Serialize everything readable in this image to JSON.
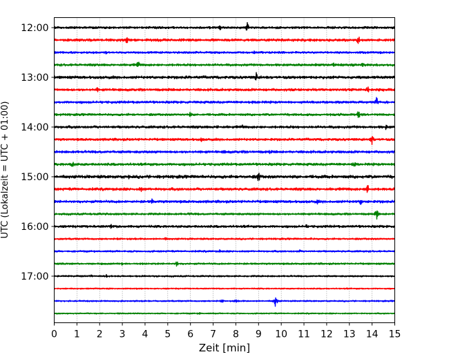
{
  "chart_data": {
    "type": "line",
    "xlabel": "Zeit  [min]",
    "ylabel": "UTC (Lokalzeit = UTC + 01:00)",
    "xlim": [
      0,
      15
    ],
    "x_ticks": [
      "0",
      "1",
      "2",
      "3",
      "4",
      "5",
      "6",
      "7",
      "8",
      "9",
      "10",
      "11",
      "12",
      "13",
      "14",
      "15"
    ],
    "y_ticks": [
      "12:00",
      "13:00",
      "14:00",
      "15:00",
      "16:00",
      "17:00"
    ],
    "grid": "vertical dotted",
    "colors": [
      "#000000",
      "#ff0000",
      "#0000ff",
      "#008000"
    ],
    "traces": [
      {
        "time": "12:00",
        "color": "#000000",
        "amp": 1.3,
        "events": [
          {
            "x": 7.3,
            "a": 5
          },
          {
            "x": 8.5,
            "a": 9
          }
        ]
      },
      {
        "time": "12:15",
        "color": "#ff0000",
        "amp": 1.5,
        "events": [
          {
            "x": 3.2,
            "a": 6
          },
          {
            "x": 13.4,
            "a": 8
          }
        ]
      },
      {
        "time": "12:30",
        "color": "#0000ff",
        "amp": 1.2,
        "events": [
          {
            "x": 2.3,
            "a": 3
          },
          {
            "x": 8.8,
            "a": 3
          }
        ]
      },
      {
        "time": "12:45",
        "color": "#008000",
        "amp": 1.4,
        "events": [
          {
            "x": 3.7,
            "a": 7
          },
          {
            "x": 12.3,
            "a": 4
          },
          {
            "x": 13.6,
            "a": 4
          }
        ]
      },
      {
        "time": "13:00",
        "color": "#000000",
        "amp": 1.6,
        "events": [
          {
            "x": 5.8,
            "a": 3
          },
          {
            "x": 8.9,
            "a": 8
          }
        ]
      },
      {
        "time": "13:15",
        "color": "#ff0000",
        "amp": 1.5,
        "events": [
          {
            "x": 1.9,
            "a": 4
          },
          {
            "x": 13.8,
            "a": 7
          }
        ]
      },
      {
        "time": "13:30",
        "color": "#0000ff",
        "amp": 1.4,
        "events": [
          {
            "x": 9.0,
            "a": 4
          },
          {
            "x": 14.2,
            "a": 8
          }
        ]
      },
      {
        "time": "13:45",
        "color": "#008000",
        "amp": 1.3,
        "events": [
          {
            "x": 6.0,
            "a": 5
          },
          {
            "x": 13.4,
            "a": 8
          }
        ]
      },
      {
        "time": "14:00",
        "color": "#000000",
        "amp": 1.5,
        "events": [
          {
            "x": 7.2,
            "a": 4
          },
          {
            "x": 8.3,
            "a": 4
          },
          {
            "x": 14.6,
            "a": 5
          }
        ]
      },
      {
        "time": "14:15",
        "color": "#ff0000",
        "amp": 1.4,
        "events": [
          {
            "x": 6.5,
            "a": 5
          },
          {
            "x": 14.0,
            "a": 9
          }
        ]
      },
      {
        "time": "14:30",
        "color": "#0000ff",
        "amp": 1.5,
        "events": [
          {
            "x": 7.5,
            "a": 4
          },
          {
            "x": 9.5,
            "a": 4
          }
        ]
      },
      {
        "time": "14:45",
        "color": "#008000",
        "amp": 1.5,
        "events": [
          {
            "x": 0.8,
            "a": 7
          },
          {
            "x": 13.2,
            "a": 7
          }
        ]
      },
      {
        "time": "15:00",
        "color": "#000000",
        "amp": 1.8,
        "events": [
          {
            "x": 3.3,
            "a": 4
          },
          {
            "x": 9.0,
            "a": 9
          }
        ]
      },
      {
        "time": "15:15",
        "color": "#ff0000",
        "amp": 1.6,
        "events": [
          {
            "x": 3.8,
            "a": 6
          },
          {
            "x": 13.8,
            "a": 9
          }
        ]
      },
      {
        "time": "15:30",
        "color": "#0000ff",
        "amp": 1.5,
        "events": [
          {
            "x": 4.3,
            "a": 5
          },
          {
            "x": 11.6,
            "a": 4
          },
          {
            "x": 13.5,
            "a": 6
          }
        ]
      },
      {
        "time": "15:45",
        "color": "#008000",
        "amp": 1.2,
        "events": [
          {
            "x": 6.0,
            "a": 4
          },
          {
            "x": 14.2,
            "a": 9
          }
        ]
      },
      {
        "time": "16:00",
        "color": "#000000",
        "amp": 1.4,
        "events": [
          {
            "x": 2.5,
            "a": 4
          },
          {
            "x": 11.1,
            "a": 4
          }
        ]
      },
      {
        "time": "16:15",
        "color": "#ff0000",
        "amp": 1.0,
        "events": [
          {
            "x": 4.9,
            "a": 3
          },
          {
            "x": 11.3,
            "a": 3
          }
        ]
      },
      {
        "time": "16:30",
        "color": "#0000ff",
        "amp": 1.0,
        "events": [
          {
            "x": 7.3,
            "a": 3
          },
          {
            "x": 10.8,
            "a": 3
          }
        ]
      },
      {
        "time": "16:45",
        "color": "#008000",
        "amp": 1.0,
        "events": [
          {
            "x": 3.0,
            "a": 3
          },
          {
            "x": 3.9,
            "a": 3
          },
          {
            "x": 5.4,
            "a": 5
          }
        ]
      },
      {
        "time": "17:00",
        "color": "#000000",
        "amp": 0.9,
        "events": [
          {
            "x": 1.6,
            "a": 4
          },
          {
            "x": 2.3,
            "a": 3
          }
        ]
      },
      {
        "time": "17:15",
        "color": "#ff0000",
        "amp": 0.7,
        "events": []
      },
      {
        "time": "17:30",
        "color": "#0000ff",
        "amp": 0.8,
        "events": [
          {
            "x": 7.4,
            "a": 3
          },
          {
            "x": 8.0,
            "a": 3
          },
          {
            "x": 9.75,
            "a": 10
          }
        ]
      },
      {
        "time": "17:45",
        "color": "#008000",
        "amp": 0.7,
        "events": [
          {
            "x": 6.4,
            "a": 2
          }
        ]
      }
    ]
  }
}
